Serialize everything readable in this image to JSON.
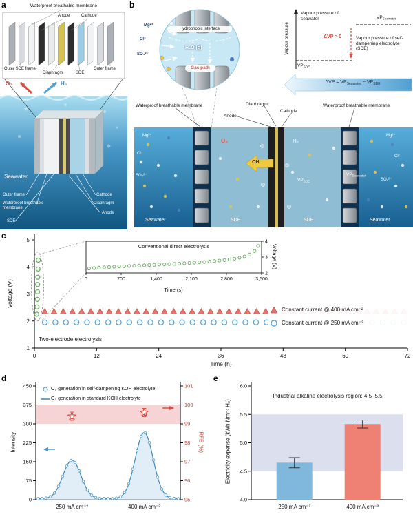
{
  "figure": {
    "labels": {
      "a": "a",
      "b": "b",
      "c": "c",
      "d": "d",
      "e": "e"
    }
  },
  "panel_a": {
    "labels": {
      "membrane": "Waterproof breathable membrane",
      "anode": "Anode",
      "cathode": "Cathode",
      "outer_sde_frame": "Outer SDE frame",
      "diaphragm": "Diaphragm",
      "sde": "SDE",
      "outer_frame": "Outer frame",
      "o2": "O₂",
      "h2": "H₂",
      "seawater": "Seawater"
    }
  },
  "panel_b": {
    "ions": {
      "mg": "Mg²⁺",
      "cl": "Cl⁻",
      "so4": "SO₄²⁻"
    },
    "zoom": {
      "hydrophobic": "Hydrophobic interface",
      "h2o": "H₂O (g)",
      "gas_path": "Gas path"
    },
    "vp": {
      "axis": "Vapour pressure",
      "seawater_text": "Vapour pressure of seawater",
      "sde_text": "Vapour pressure of self-dampening electrolyte (SDE)",
      "delta": "ΔVP > 0",
      "vp": "VP",
      "seawater": "Seawater",
      "sde": "SDE",
      "eq_prefix": "ΔVP = VP",
      "eq_mid": " − VP"
    },
    "cross": {
      "membrane": "Waterproof breathable membrane",
      "diaphragm": "Diaphragm",
      "anode": "Anode",
      "cathode": "Cathode",
      "o2": "O₂",
      "h2": "H₂",
      "oh": "OH⁻",
      "seawater": "Seawater",
      "sde": "SDE"
    }
  },
  "chart_data": [
    {
      "id": "c_main",
      "type": "scatter",
      "xlabel": "Time (h)",
      "ylabel": "Voltage (V)",
      "xlim": [
        0,
        72
      ],
      "ylim": [
        1,
        5
      ],
      "xticks": [
        0,
        12,
        24,
        36,
        48,
        60,
        72
      ],
      "yticks": [
        1,
        2,
        3,
        4,
        5
      ],
      "annotation": "Two-electrode electrolysis",
      "series": [
        {
          "name": "Constant current @ 400 mA cm⁻²",
          "marker": "triangle",
          "color": "#e4756b",
          "edge": "#c2574e",
          "gen": {
            "x_start": 2,
            "x_end": 71.3,
            "count": 40,
            "y": 2.35
          }
        },
        {
          "name": "Constant current @ 250 mA cm⁻²",
          "marker": "circle",
          "color": "#5ba3d4",
          "gen": {
            "x_start": 2,
            "x_end": 71.3,
            "count": 35,
            "y": 1.95
          }
        },
        {
          "name": "Conventional direct electrolysis (initial rise)",
          "marker": "circle",
          "color": "#6fae67",
          "r": 3,
          "x": [
            0.45,
            0.5,
            0.55,
            0.6,
            0.62,
            0.65,
            0.7,
            0.75
          ],
          "y": [
            2.25,
            2.52,
            2.8,
            3.08,
            3.35,
            3.62,
            3.92,
            4.25
          ]
        }
      ]
    },
    {
      "id": "c_inset",
      "type": "scatter",
      "title": "Conventional direct electrolysis",
      "xlabel": "Time (s)",
      "ylabel": "Voltage (V)",
      "xlim": [
        0,
        3500
      ],
      "ylim": [
        2,
        4
      ],
      "xticks": [
        0,
        700,
        1400,
        2100,
        2800,
        3500
      ],
      "xtick_labels": [
        "0",
        "700",
        "1,400",
        "2,100",
        "2,800",
        "3,500"
      ],
      "yticks": [
        2,
        3,
        4
      ],
      "series": [
        {
          "name": "Conventional direct electrolysis",
          "marker": "circle",
          "color": "#6fae67",
          "x": [
            60,
            160,
            260,
            360,
            460,
            560,
            660,
            760,
            860,
            960,
            1060,
            1160,
            1260,
            1360,
            1460,
            1560,
            1660,
            1760,
            1860,
            1960,
            2060,
            2160,
            2260,
            2360,
            2460,
            2560,
            2660,
            2760,
            2860,
            2960,
            3060,
            3160,
            3260,
            3360,
            3430
          ],
          "y": [
            2.28,
            2.31,
            2.33,
            2.35,
            2.37,
            2.39,
            2.41,
            2.42,
            2.44,
            2.45,
            2.47,
            2.48,
            2.5,
            2.51,
            2.53,
            2.54,
            2.56,
            2.57,
            2.59,
            2.61,
            2.63,
            2.65,
            2.67,
            2.69,
            2.72,
            2.75,
            2.78,
            2.81,
            2.85,
            2.9,
            2.96,
            3.04,
            3.16,
            3.38,
            3.7
          ]
        }
      ]
    },
    {
      "id": "d",
      "type": "line",
      "ylabel_left": "Intensity",
      "ylabel_right": "RFE (%)",
      "ylim_left": [
        0,
        450
      ],
      "yticks_left": [
        0,
        75,
        150,
        225,
        300,
        375,
        450
      ],
      "ylim_right": [
        95,
        101
      ],
      "yticks_right": [
        95,
        96,
        97,
        98,
        99,
        100,
        101
      ],
      "categories": [
        "250 mA cm⁻²",
        "400 mA cm⁻²"
      ],
      "peak_heights": [
        152,
        262
      ],
      "rfe_values": [
        99.4,
        99.6
      ],
      "band_rfe": [
        99,
        100
      ],
      "series": [
        {
          "name": "O₂ generation in self-dampening KOH electrolyte",
          "marker": "circle",
          "color": "#5ba3d4"
        },
        {
          "name": "O₂ generation in standard KOH electrolyte",
          "marker": "line",
          "color": "#3d87bd"
        }
      ]
    },
    {
      "id": "e",
      "type": "bar",
      "ylabel": "Electricity expense (kWh Nm⁻³ H₂)",
      "ylim": [
        4.0,
        6.0
      ],
      "yticks": [
        "4.0",
        "4.5",
        "5.0",
        "5.5",
        "6.0"
      ],
      "categories": [
        "250 mA cm⁻²",
        "400 mA cm⁻²"
      ],
      "values": [
        4.65,
        5.33
      ],
      "errors": [
        0.09,
        0.07
      ],
      "colors": [
        "#7fb8dc",
        "#ee8074"
      ],
      "band": [
        4.5,
        5.5
      ],
      "band_label": "Industrial alkaline electrolysis region: 4.5–5.5"
    }
  ]
}
